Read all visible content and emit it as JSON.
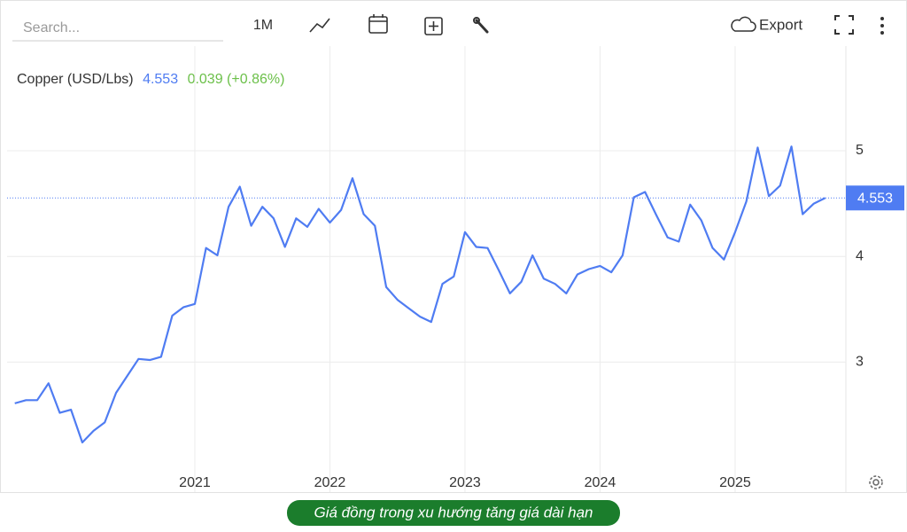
{
  "toolbar": {
    "search_placeholder": "Search...",
    "period": "1M",
    "export": "Export"
  },
  "chart_data": {
    "type": "line",
    "change": "0.039 (+0.86%)",
    "x": [
      2019.667,
      2019.75,
      2019.833,
      2019.917,
      2020,
      2020.083,
      2020.167,
      2020.25,
      2020.333,
      2020.417,
      2020.5,
      2020.583,
      2020.667,
      2020.75,
      2020.833,
      2020.917,
      2021,
      2021.083,
      2021.167,
      2021.25,
      2021.333,
      2021.417,
      2021.5,
      2021.583,
      2021.667,
      2021.75,
      2021.833,
      2021.917,
      2022,
      2022.083,
      2022.167,
      2022.25,
      2022.333,
      2022.417,
      2022.5,
      2022.583,
      2022.667,
      2022.75,
      2022.833,
      2022.917,
      2023,
      2023.083,
      2023.167,
      2023.25,
      2023.333,
      2023.417,
      2023.5,
      2023.583,
      2023.667,
      2023.75,
      2023.833,
      2023.917,
      2024,
      2024.083,
      2024.167,
      2024.25,
      2024.333,
      2024.417,
      2024.5,
      2024.583,
      2024.667,
      2024.75,
      2024.833,
      2024.917,
      2025,
      2025.083,
      2025.167,
      2025.25,
      2025.333,
      2025.417,
      2025.5,
      2025.583,
      2025.667
    ],
    "series": [
      {
        "name": "Copper (USD/Lbs)",
        "color": "#4f7cf2",
        "values": [
          2.61,
          2.64,
          2.64,
          2.8,
          2.52,
          2.55,
          2.24,
          2.35,
          2.43,
          2.71,
          2.87,
          3.03,
          3.02,
          3.05,
          3.44,
          3.52,
          3.55,
          4.08,
          4.01,
          4.47,
          4.66,
          4.29,
          4.47,
          4.36,
          4.09,
          4.36,
          4.28,
          4.45,
          4.32,
          4.44,
          4.74,
          4.4,
          4.29,
          3.71,
          3.59,
          3.51,
          3.43,
          3.38,
          3.74,
          3.81,
          4.23,
          4.09,
          4.08,
          3.87,
          3.65,
          3.76,
          4.01,
          3.79,
          3.74,
          3.65,
          3.83,
          3.88,
          3.91,
          3.85,
          4.01,
          4.56,
          4.61,
          4.39,
          4.18,
          4.14,
          4.49,
          4.34,
          4.08,
          3.97,
          4.23,
          4.52,
          5.03,
          4.57,
          4.67,
          5.04,
          4.4,
          4.5,
          4.553
        ]
      }
    ],
    "xlim": [
      2019.61,
      2025.82
    ],
    "xticks": [
      2021,
      2022,
      2023,
      2024,
      2025
    ],
    "ylim": [
      1.77,
      5.99
    ],
    "yticks": [
      3,
      4,
      5
    ],
    "grid": true,
    "change_color": "#6cc04a"
  },
  "caption": "Giá đồng trong xu hướng tăng giá dài hạn"
}
